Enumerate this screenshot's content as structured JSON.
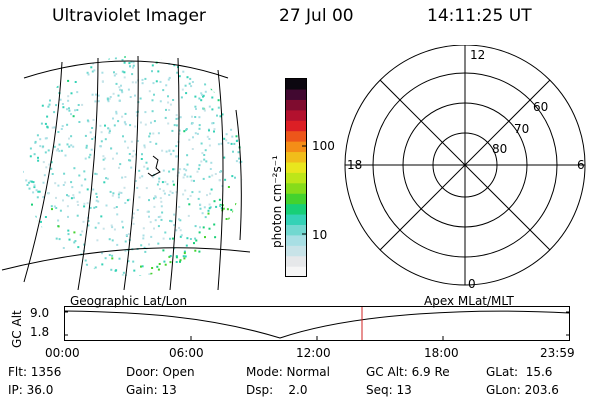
{
  "header": {
    "instrument": "Ultraviolet Imager",
    "date": "27 Jul 00",
    "time": "14:11:25 UT"
  },
  "colorbar": {
    "unit_label": "photon cm⁻²s⁻¹",
    "tick_100": "100",
    "tick_10": "10",
    "colors": [
      "#f6f6f6",
      "#e6e8ea",
      "#c8e3e8",
      "#a8dfe4",
      "#72d8d0",
      "#34d2b6",
      "#18cf77",
      "#44d22e",
      "#86dc1a",
      "#bde619",
      "#e9e61d",
      "#f1bd1a",
      "#f48d17",
      "#ed561a",
      "#dc1f25",
      "#b3112e",
      "#7f0c2f",
      "#410830",
      "#0c0710"
    ]
  },
  "polar_plot": {
    "mlt_labels": {
      "top": "12",
      "left": "18",
      "right": "6",
      "bottom": "0"
    },
    "mlat_labels": [
      "60",
      "70",
      "80"
    ]
  },
  "orbit_panel": {
    "left_title": "Geographic Lat/Lon",
    "right_title": "Apex MLat/MLT",
    "axis_label": "GC Alt",
    "y_ticks": [
      "9.0",
      "1.8"
    ],
    "x_ticks": [
      "00:00",
      "06:00",
      "12:00",
      "18:00",
      "23:59"
    ],
    "marker_color": "#d02020"
  },
  "footer": {
    "flt": "Flt: 1356",
    "ip": "IP: 36.0",
    "door": "Door: Open",
    "gain": "Gain: 13",
    "mode": "Mode: Normal",
    "dsp": "Dsp:    2.0",
    "gc_alt": "GC Alt: 6.9 Re",
    "seq": "Seq: 13",
    "glat": "GLat:  15.6",
    "glon": "GLon: 203.6"
  }
}
